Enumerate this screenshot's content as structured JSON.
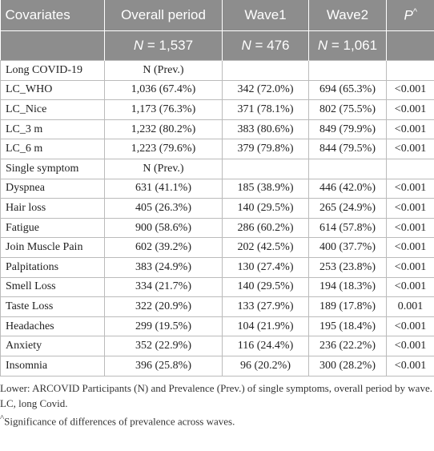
{
  "table": {
    "header": [
      {
        "text": "Covariates"
      },
      {
        "text": "Overall period"
      },
      {
        "text": "Wave1"
      },
      {
        "text": "Wave2"
      },
      {
        "text": "P",
        "sup": "^"
      }
    ],
    "subheader": [
      null,
      {
        "italic": "N",
        "text": " = 1,537"
      },
      {
        "italic": "N",
        "text": " = 476"
      },
      {
        "italic": "N",
        "text": " = 1,061"
      },
      null
    ],
    "rows": [
      [
        "Long COVID-19",
        "N (Prev.)",
        "",
        "",
        ""
      ],
      [
        "LC_WHO",
        "1,036 (67.4%)",
        "342 (72.0%)",
        "694 (65.3%)",
        "<0.001"
      ],
      [
        "LC_Nice",
        "1,173 (76.3%)",
        "371 (78.1%)",
        "802 (75.5%)",
        "<0.001"
      ],
      [
        "LC_3 m",
        "1,232 (80.2%)",
        "383 (80.6%)",
        "849 (79.9%)",
        "<0.001"
      ],
      [
        "LC_6 m",
        "1,223 (79.6%)",
        "379 (79.8%)",
        "844 (79.5%)",
        "<0.001"
      ],
      [
        "Single symptom",
        "N (Prev.)",
        "",
        "",
        ""
      ],
      [
        "Dyspnea",
        "631 (41.1%)",
        "185 (38.9%)",
        "446 (42.0%)",
        "<0.001"
      ],
      [
        "Hair loss",
        "405 (26.3%)",
        "140 (29.5%)",
        "265 (24.9%)",
        "<0.001"
      ],
      [
        "Fatigue",
        "900 (58.6%)",
        "286 (60.2%)",
        "614 (57.8%)",
        "<0.001"
      ],
      [
        "Join Muscle Pain",
        "602 (39.2%)",
        "202 (42.5%)",
        "400 (37.7%)",
        "<0.001"
      ],
      [
        "Palpitations",
        "383 (24.9%)",
        "130 (27.4%)",
        "253 (23.8%)",
        "<0.001"
      ],
      [
        "Smell Loss",
        "334 (21.7%)",
        "140 (29.5%)",
        "194 (18.3%)",
        "<0.001"
      ],
      [
        "Taste Loss",
        "322 (20.9%)",
        "133 (27.9%)",
        "189 (17.8%)",
        "0.001"
      ],
      [
        "Headaches",
        "299 (19.5%)",
        "104 (21.9%)",
        "195 (18.4%)",
        "<0.001"
      ],
      [
        "Anxiety",
        "352 (22.9%)",
        "116 (24.4%)",
        "236 (22.2%)",
        "<0.001"
      ],
      [
        "Insomnia",
        "396 (25.8%)",
        "96 (20.2%)",
        "300 (28.2%)",
        "<0.001"
      ]
    ]
  },
  "footnotes": [
    {
      "text": "Lower: ARCOVID Participants (N) and Prevalence (Prev.) of single symptoms, overall period by wave."
    },
    {
      "text": "LC, long Covid."
    },
    {
      "sup": "^",
      "text": "Significance of differences of prevalence across waves."
    }
  ]
}
